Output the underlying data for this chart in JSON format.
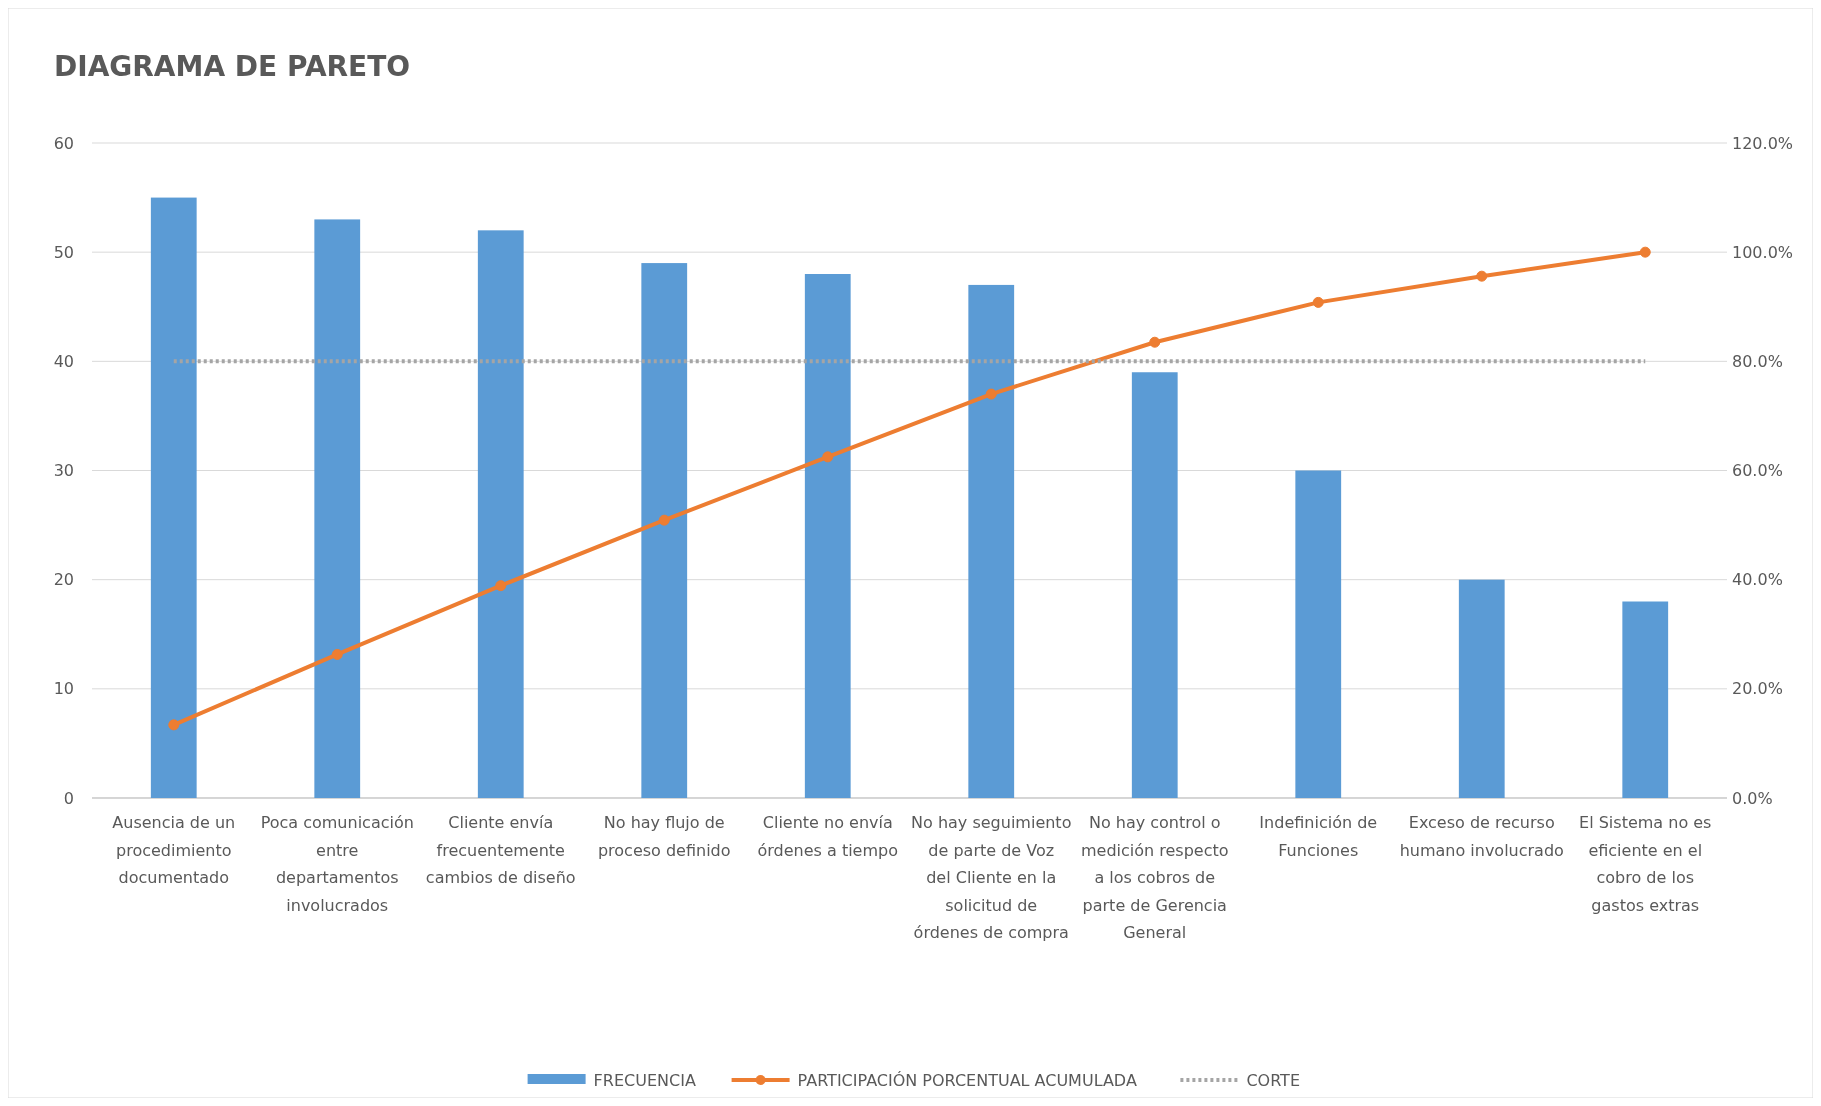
{
  "chart_data": {
    "type": "bar",
    "title": "DIAGRAMA DE PARETO",
    "categories": [
      "Ausencia de un procedimiento documentado",
      "Poca comunicación entre departamentos involucrados",
      "Cliente envía frecuentemente cambios de diseño",
      "No hay flujo de proceso definido",
      "Cliente no envía órdenes a tiempo",
      "No hay seguimiento de parte de Voz del Cliente en la solicitud de órdenes de compra",
      "No hay control o medición respecto a los cobros de parte de Gerencia General",
      "Indefinición de Funciones",
      "Exceso de recurso humano involucrado",
      "El Sistema no es eficiente en el cobro de los gastos extras"
    ],
    "series": [
      {
        "name": "FRECUENCIA",
        "color": "#5b9bd5",
        "values": [
          55,
          53,
          52,
          49,
          48,
          47,
          39,
          30,
          20,
          18
        ]
      },
      {
        "name": "PARTICIPACIÓN PORCENTUAL ACUMULADA",
        "type": "line",
        "axis": "y2",
        "color": "#ed7d31",
        "marker": "circle",
        "line_style": "solid",
        "values": [
          13.4,
          26.3,
          38.9,
          50.9,
          62.5,
          74.0,
          83.5,
          90.8,
          95.6,
          100
        ]
      },
      {
        "name": "CORTE",
        "type": "line",
        "axis": "y2",
        "color": "#a5a5a5",
        "marker": "none",
        "line_style": "dotted",
        "values": [
          80,
          80,
          80,
          80,
          80,
          80,
          80,
          80,
          80,
          80
        ]
      }
    ],
    "ylim": [
      0,
      60
    ],
    "yticks": [
      0,
      10,
      20,
      30,
      40,
      50,
      60
    ],
    "y2lim": [
      0,
      120
    ],
    "y2ticks": [
      {
        "value": 0,
        "label": "0.0%"
      },
      {
        "value": 20,
        "label": "20.0%"
      },
      {
        "value": 40,
        "label": "40.0%"
      },
      {
        "value": 60,
        "label": "60.0%"
      },
      {
        "value": 80,
        "label": "80.0%"
      },
      {
        "value": 100,
        "label": "100.0%"
      },
      {
        "value": 120,
        "label": "120.0%"
      }
    ],
    "grid": "y",
    "legend": "bottom"
  }
}
